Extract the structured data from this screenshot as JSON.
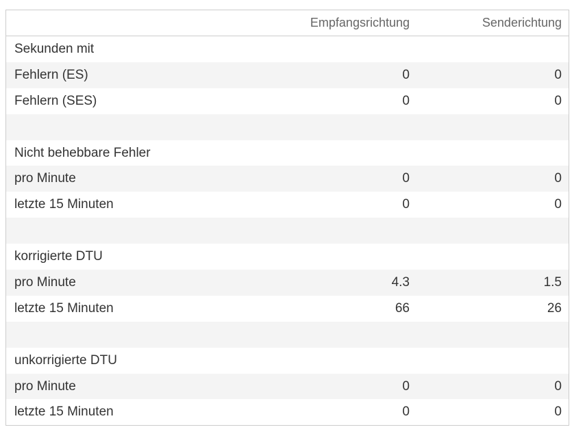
{
  "header": {
    "col1": "Empfangsrichtung",
    "col2": "Senderichtung"
  },
  "rows": [
    {
      "label": "Sekunden mit",
      "rx": "",
      "tx": ""
    },
    {
      "label": "Fehlern (ES)",
      "rx": "0",
      "tx": "0"
    },
    {
      "label": "Fehlern (SES)",
      "rx": "0",
      "tx": "0"
    },
    {
      "label": "",
      "rx": "",
      "tx": ""
    },
    {
      "label": "Nicht behebbare Fehler",
      "rx": "",
      "tx": ""
    },
    {
      "label": "pro Minute",
      "rx": "0",
      "tx": "0"
    },
    {
      "label": "letzte 15 Minuten",
      "rx": "0",
      "tx": "0"
    },
    {
      "label": "",
      "rx": "",
      "tx": ""
    },
    {
      "label": "korrigierte DTU",
      "rx": "",
      "tx": ""
    },
    {
      "label": "pro Minute",
      "rx": "4.3",
      "tx": "1.5"
    },
    {
      "label": "letzte 15 Minuten",
      "rx": "66",
      "tx": "26"
    },
    {
      "label": "",
      "rx": "",
      "tx": ""
    },
    {
      "label": "unkorrigierte DTU",
      "rx": "",
      "tx": ""
    },
    {
      "label": "pro Minute",
      "rx": "0",
      "tx": "0"
    },
    {
      "label": "letzte 15 Minuten",
      "rx": "0",
      "tx": "0"
    }
  ]
}
